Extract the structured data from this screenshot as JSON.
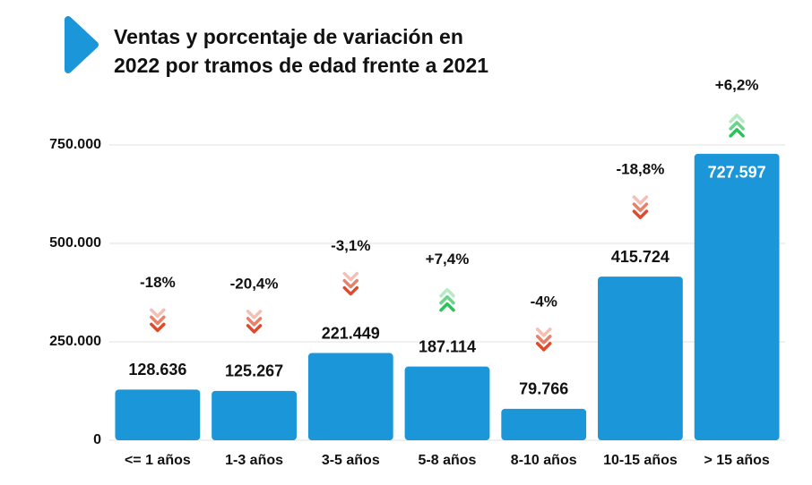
{
  "chart_data": {
    "type": "bar",
    "title": [
      "Ventas y porcentaje de variación en",
      "2022 por tramos de edad frente a 2021"
    ],
    "categories": [
      "<= 1 años",
      "1-3 años",
      "3-5 años",
      "5-8 años",
      "8-10 años",
      "10-15 años",
      "> 15 años"
    ],
    "values": [
      128636,
      125267,
      221449,
      187114,
      79766,
      415724,
      727597
    ],
    "value_labels": [
      "128.636",
      "125.267",
      "221.449",
      "187.114",
      "79.766",
      "415.724",
      "727.597"
    ],
    "changes": [
      -18,
      -20.4,
      -3.1,
      7.4,
      -4,
      -18.8,
      6.2
    ],
    "change_labels": [
      "-18%",
      "-20,4%",
      "-3,1%",
      "+7,4%",
      "-4%",
      "-18,8%",
      "+6,2%"
    ],
    "color": "#1a96d9",
    "ylim": [
      0,
      800000
    ],
    "yticks": [
      0,
      {
        "value": 250000,
        "label": "250.000"
      },
      {
        "value": 500000,
        "label": "500.000"
      },
      {
        "value": 750000,
        "label": "750.000"
      }
    ],
    "grid": true
  }
}
